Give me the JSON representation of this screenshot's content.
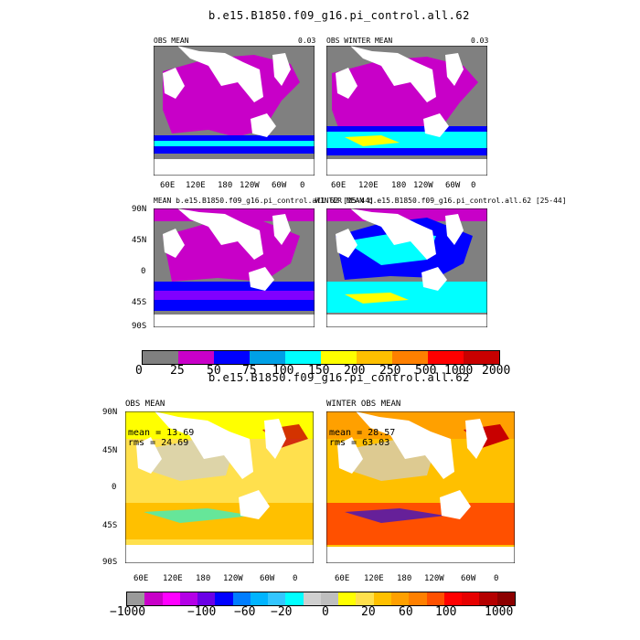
{
  "figure_titles": [
    "b.e15.B1850.f09_g16.pi_control.all.62",
    "b.e15.B1850.f09_g16.pi_control.all.62"
  ],
  "colors": {
    "top_scale": [
      "#808080",
      "#c800c8",
      "#8000ff",
      "#0000ff",
      "#00a0e6",
      "#00ffff",
      "#ffff00",
      "#ffc000",
      "#ff8000",
      "#ff0000",
      "#c80000"
    ],
    "bottom_scale": [
      "#9a9a9a",
      "#c800c8",
      "#ff00ff",
      "#b400e6",
      "#6a00e6",
      "#0000ff",
      "#007dff",
      "#00b4ff",
      "#33c6ff",
      "#00ffff",
      "#cfcfcf",
      "#bebebe",
      "#ffff00",
      "#ffe04d",
      "#ffc000",
      "#ffa000",
      "#ff8000",
      "#ff5000",
      "#ff0000",
      "#e60000",
      "#b40000",
      "#8c0000"
    ],
    "land": "#ffffff"
  },
  "panels": {
    "top": [
      {
        "left_label": "OBS MEAN",
        "right_label": "0.03"
      },
      {
        "left_label": "OBS WINTER MEAN",
        "right_label": "0.03"
      },
      {
        "left_label": "MEAN  b.e15.B1850.f09_g16.pi_control.all.62 [25-44]",
        "right_label": ""
      },
      {
        "left_label": "WINTER MEAN  b.e15.B1850.f09_g16.pi_control.all.62 [25-44]",
        "right_label": ""
      }
    ],
    "bottom": [
      {
        "left_label": "OBS MEAN",
        "stat_mean": "mean = 13.69",
        "stat_rms": "rms = 24.69"
      },
      {
        "left_label": "WINTER OBS MEAN",
        "stat_mean": "mean = 28.57",
        "stat_rms": "rms = 63.03"
      }
    ]
  },
  "chart_data": [
    {
      "type": "heatmap",
      "title": "b.e15.B1850.f09_g16.pi_control.all.62",
      "panels": [
        "OBS MEAN",
        "OBS WINTER MEAN",
        "MEAN b.e15.B1850.f09_g16.pi_control.all.62 [25-44]",
        "WINTER MEAN b.e15.B1850.f09_g16.pi_control.all.62 [25-44]"
      ],
      "x_ticks": [
        "60E",
        "120E",
        "180",
        "120W",
        "60W",
        "0"
      ],
      "y_ticks": [
        "90N",
        "45N",
        "0",
        "45S",
        "90S"
      ],
      "colorbar_levels": [
        "0",
        "25",
        "50",
        "75",
        "100",
        "150",
        "200",
        "250",
        "500",
        "1000",
        "2000"
      ]
    },
    {
      "type": "heatmap",
      "title": "b.e15.B1850.f09_g16.pi_control.all.62",
      "panels": [
        "OBS MEAN",
        "WINTER OBS MEAN"
      ],
      "x_ticks": [
        "60E",
        "120E",
        "180",
        "120W",
        "60W",
        "0"
      ],
      "y_ticks": [
        "90N",
        "45N",
        "0",
        "45S",
        "90S"
      ],
      "colorbar_levels": [
        "−1000",
        "−100",
        "−60",
        "−20",
        "0",
        "20",
        "60",
        "100",
        "1000"
      ],
      "stats": [
        {
          "mean": 13.69,
          "rms": 24.69
        },
        {
          "mean": 28.57,
          "rms": 63.03
        }
      ]
    }
  ]
}
